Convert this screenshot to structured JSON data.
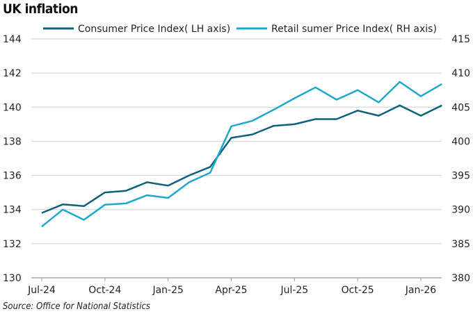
{
  "title": "UK inflation",
  "source": "Source: Office for National Statistics",
  "chart_data": {
    "type": "line",
    "x": [
      "Jul-24",
      "Aug-24",
      "Sep-24",
      "Oct-24",
      "Nov-24",
      "Dec-24",
      "Jan-25",
      "Feb-25",
      "Mar-25",
      "Apr-25",
      "May-25",
      "Jun-25",
      "Jul-25",
      "Aug-25",
      "Sep-25",
      "Oct-25",
      "Nov-25",
      "Dec-25",
      "Jan-26",
      "Feb-26"
    ],
    "xticks": [
      "Jul-24",
      "Oct-24",
      "Jan-25",
      "Apr-25",
      "Jul-25",
      "Oct-25",
      "Jan-26"
    ],
    "y_left": {
      "range": [
        130,
        144
      ],
      "ticks": [
        130,
        132,
        134,
        136,
        138,
        140,
        142,
        144
      ]
    },
    "y_right": {
      "range": [
        380,
        415
      ],
      "ticks": [
        380,
        385,
        390,
        395,
        400,
        405,
        410,
        415
      ]
    },
    "grid": true,
    "legend_placement": "top",
    "series": [
      {
        "name": "Consumer Price Index( LH axis)",
        "axis": "left",
        "color": "#0e627c",
        "values": [
          133.8,
          134.3,
          134.2,
          135.0,
          135.1,
          135.6,
          135.4,
          136.0,
          136.5,
          138.2,
          138.4,
          138.9,
          139.0,
          139.3,
          139.3,
          139.8,
          139.5,
          140.1,
          139.5,
          140.1
        ]
      },
      {
        "name": "Retail sumer Price Index( RH axis)",
        "axis": "right",
        "color": "#1ca9cc",
        "values": [
          387.5,
          390.0,
          388.5,
          390.7,
          390.9,
          392.1,
          391.7,
          394.0,
          395.4,
          402.2,
          403.0,
          404.6,
          406.3,
          407.9,
          406.1,
          407.5,
          405.7,
          408.7,
          406.6,
          408.4
        ]
      }
    ]
  }
}
